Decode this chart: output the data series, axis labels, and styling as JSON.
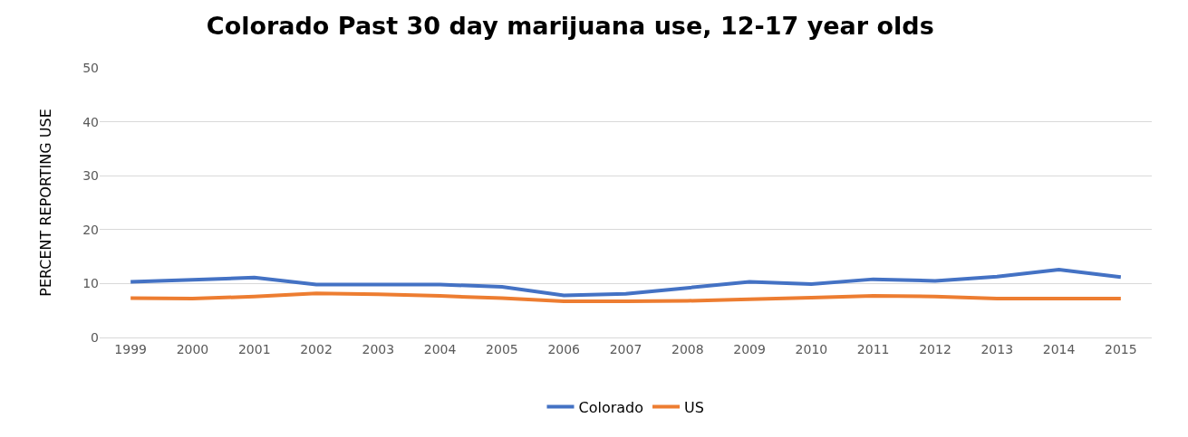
{
  "chart_data": {
    "type": "line",
    "title": "Colorado Past 30 day marijuana use, 12-17 year olds",
    "ylabel": "PERCENT REPORTING USE",
    "categories": [
      "1999",
      "2000",
      "2001",
      "2002",
      "2003",
      "2004",
      "2005",
      "2006",
      "2007",
      "2008",
      "2009",
      "2010",
      "2011",
      "2012",
      "2013",
      "2014",
      "2015"
    ],
    "series": [
      {
        "name": "Colorado",
        "color": "#4472c4",
        "values": [
          10.3,
          10.7,
          11.1,
          9.8,
          9.8,
          9.8,
          9.4,
          7.8,
          8.1,
          9.2,
          10.3,
          9.9,
          10.8,
          10.5,
          11.3,
          12.6,
          11.2
        ]
      },
      {
        "name": "US",
        "color": "#ed7d31",
        "values": [
          7.3,
          7.2,
          7.6,
          8.2,
          8.0,
          7.7,
          7.3,
          6.7,
          6.7,
          6.8,
          7.1,
          7.4,
          7.7,
          7.6,
          7.2,
          7.2,
          7.2
        ]
      }
    ],
    "ylim": [
      0,
      50
    ],
    "yticks": [
      0,
      10,
      20,
      30,
      40,
      50
    ],
    "grid": "y",
    "legend": "bottom",
    "marker": "none",
    "line_style": "solid"
  }
}
